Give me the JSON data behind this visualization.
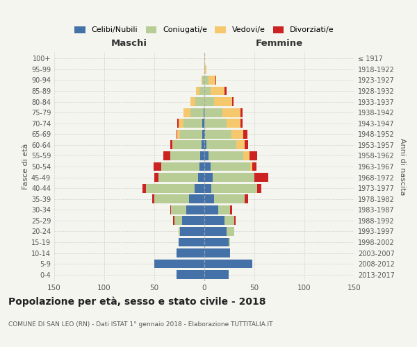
{
  "age_groups": [
    "0-4",
    "5-9",
    "10-14",
    "15-19",
    "20-24",
    "25-29",
    "30-34",
    "35-39",
    "40-44",
    "45-49",
    "50-54",
    "55-59",
    "60-64",
    "65-69",
    "70-74",
    "75-79",
    "80-84",
    "85-89",
    "90-94",
    "95-99",
    "100+"
  ],
  "birth_years": [
    "2013-2017",
    "2008-2012",
    "2003-2007",
    "1998-2002",
    "1993-1997",
    "1988-1992",
    "1983-1987",
    "1978-1982",
    "1973-1977",
    "1968-1972",
    "1963-1967",
    "1958-1962",
    "1953-1957",
    "1948-1952",
    "1943-1947",
    "1938-1942",
    "1933-1937",
    "1928-1932",
    "1923-1927",
    "1918-1922",
    "≤ 1917"
  ],
  "male_celibi": [
    28,
    50,
    28,
    26,
    24,
    22,
    18,
    15,
    10,
    6,
    5,
    4,
    3,
    2,
    2,
    1,
    0,
    0,
    0,
    0,
    0
  ],
  "male_coniugati": [
    0,
    0,
    0,
    0,
    2,
    8,
    15,
    35,
    48,
    40,
    38,
    30,
    28,
    22,
    19,
    13,
    9,
    5,
    2,
    0,
    0
  ],
  "male_vedovi": [
    0,
    0,
    0,
    0,
    0,
    0,
    0,
    0,
    0,
    0,
    0,
    0,
    1,
    3,
    5,
    7,
    5,
    3,
    1,
    0,
    0
  ],
  "male_divorziati": [
    0,
    0,
    0,
    0,
    0,
    1,
    1,
    2,
    4,
    4,
    8,
    7,
    2,
    1,
    1,
    0,
    0,
    0,
    0,
    0,
    0
  ],
  "female_nubili": [
    24,
    48,
    26,
    24,
    22,
    20,
    14,
    10,
    7,
    8,
    6,
    4,
    2,
    1,
    0,
    0,
    0,
    0,
    0,
    0,
    0
  ],
  "female_coniugate": [
    0,
    0,
    0,
    2,
    8,
    10,
    12,
    30,
    46,
    42,
    40,
    35,
    30,
    26,
    22,
    18,
    10,
    6,
    4,
    1,
    0
  ],
  "female_vedove": [
    0,
    0,
    0,
    0,
    0,
    0,
    0,
    0,
    0,
    0,
    2,
    6,
    8,
    12,
    14,
    18,
    18,
    14,
    7,
    1,
    1
  ],
  "female_divorziate": [
    0,
    0,
    0,
    0,
    0,
    1,
    2,
    4,
    4,
    14,
    4,
    8,
    4,
    4,
    2,
    2,
    1,
    2,
    1,
    0,
    0
  ],
  "colors": {
    "celibi": "#4472a8",
    "coniugati": "#b8cc96",
    "vedovi": "#f5c86e",
    "divorziati": "#cc2222"
  },
  "xlim": 150,
  "title": "Popolazione per età, sesso e stato civile - 2018",
  "subtitle": "COMUNE DI SAN LEO (RN) - Dati ISTAT 1° gennaio 2018 - Elaborazione TUTTITALIA.IT",
  "ylabel_left": "Fasce di età",
  "ylabel_right": "Anni di nascita",
  "xlabel_left": "Maschi",
  "xlabel_right": "Femmine",
  "legend_labels": [
    "Celibi/Nubili",
    "Coniugati/e",
    "Vedovi/e",
    "Divorziati/e"
  ],
  "background_color": "#f5f5f0"
}
